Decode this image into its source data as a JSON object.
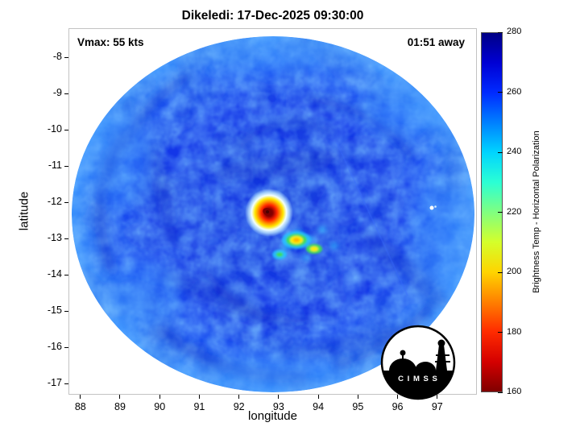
{
  "header": {
    "title": "Dikeledi: 17-Dec-2025 09:30:00"
  },
  "annotations": {
    "vmax": "Vmax: 55 kts",
    "eta": "01:51 away"
  },
  "axes": {
    "xlabel": "longitude",
    "ylabel": "latitude"
  },
  "logo": {
    "letters": "C I M S S"
  },
  "chart_data": {
    "type": "heatmap",
    "title": "Dikeledi: 17-Dec-2025 09:30:00",
    "xlabel": "longitude",
    "ylabel": "latitude",
    "xlim": [
      87.7,
      98.0
    ],
    "ylim": [
      -17.3,
      -7.2
    ],
    "x_ticks": [
      88,
      89,
      90,
      91,
      92,
      93,
      94,
      95,
      96,
      97
    ],
    "y_ticks": [
      -8,
      -9,
      -10,
      -11,
      -12,
      -13,
      -14,
      -15,
      -16,
      -17
    ],
    "grid": false,
    "legend": false,
    "annotations": [
      "Vmax: 55 kts",
      "01:51 away"
    ],
    "colorbar": {
      "label": "Brightness Temp - Horizontal Polarization",
      "min": 160,
      "max": 280,
      "ticks": [
        160,
        180,
        200,
        220,
        240,
        260,
        280
      ],
      "stops": [
        {
          "value": 280,
          "color": "#000085"
        },
        {
          "value": 270,
          "color": "#0000d4"
        },
        {
          "value": 260,
          "color": "#002bff"
        },
        {
          "value": 250,
          "color": "#0080ff"
        },
        {
          "value": 240,
          "color": "#00d4ff"
        },
        {
          "value": 230,
          "color": "#2bffd4"
        },
        {
          "value": 220,
          "color": "#80ff80"
        },
        {
          "value": 210,
          "color": "#d4ff2b"
        },
        {
          "value": 200,
          "color": "#ffd400"
        },
        {
          "value": 190,
          "color": "#ff8000"
        },
        {
          "value": 180,
          "color": "#ff2b00"
        },
        {
          "value": 170,
          "color": "#d40000"
        },
        {
          "value": 160,
          "color": "#800000"
        }
      ]
    },
    "field": {
      "description": "Circular microwave brightness-temperature swath of tropical cyclone Dikeledi; mostly 250-265 K (blue) with a warm eye spot",
      "swath_center": {
        "lon": 92.86,
        "lat": -12.33
      },
      "background_temp_K": 260,
      "eye": {
        "lon": 92.75,
        "lat": -12.3,
        "min_temp_K": 165
      },
      "warm_patches": [
        {
          "lon": 93.45,
          "lat": -13.04,
          "temp_K": 205
        },
        {
          "lon": 93.9,
          "lat": -13.28,
          "temp_K": 215
        },
        {
          "lon": 93.02,
          "lat": -13.44,
          "temp_K": 225
        }
      ],
      "data_gap_dot": {
        "lon": 96.9,
        "lat": -12.15
      },
      "colors": {
        "base": "#1233dd",
        "edge": "#3f97ff",
        "dark_band": "#0a23b4",
        "eye_core": "#7d0000",
        "eye_ring_red": "#ff2400",
        "eye_ring_orange": "#ff9200",
        "eye_ring_yellow": "#ffe600",
        "eye_halo": "#f2ffff",
        "patch_yellow": "#ffec00",
        "patch_green": "#3fdc5a",
        "patch_cyan": "#27c3ff"
      }
    }
  }
}
